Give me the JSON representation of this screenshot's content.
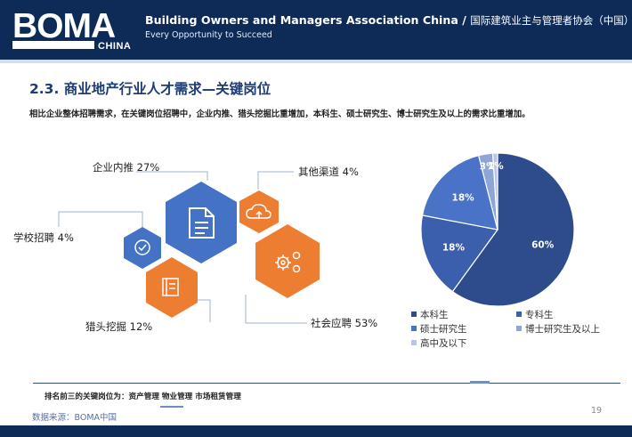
{
  "header": {
    "logo_text": "BOMA",
    "logo_sub": "CHINA",
    "title_en": "Building Owners and Managers Association China /",
    "title_cn": "国际建筑业主与管理者协会（中国）",
    "tagline": "Every Opportunity to Succeed"
  },
  "slide": {
    "title": "2.3. 商业地产行业人才需求—关键岗位",
    "subtitle": "相比企业整体招聘需求，在关键岗位招聘中，企业内推、猎头挖掘比重增加，本科生、硕士研究生、博士研究生及以上的需求比重增加。"
  },
  "channels": {
    "items": [
      {
        "label": "企业内推 27%",
        "icon": "document-icon",
        "color": "#4472c4"
      },
      {
        "label": "其他渠道 4%",
        "icon": "cloud-upload-icon",
        "color": "#ed7d31"
      },
      {
        "label": "学校招聘 4%",
        "icon": "check-circle-icon",
        "color": "#4472c4"
      },
      {
        "label": "社会应聘 53%",
        "icon": "gears-icon",
        "color": "#ed7d31"
      },
      {
        "label": "猎头挖掘 12%",
        "icon": "book-icon",
        "color": "#ed7d31"
      }
    ]
  },
  "chart_data": {
    "type": "pie",
    "title": "",
    "slices": [
      {
        "name": "本科生",
        "value": 60,
        "label": "60%",
        "color": "#2e4b8c"
      },
      {
        "name": "专科生",
        "value": 18,
        "label": "18%",
        "color": "#3c5fad"
      },
      {
        "name": "硕士研究生",
        "value": 18,
        "label": "18%",
        "color": "#4a72c7"
      },
      {
        "name": "博士研究生及以上",
        "value": 3,
        "label": "3%",
        "color": "#8ea6d6"
      },
      {
        "name": "高中及以下",
        "value": 1,
        "label": "1%",
        "color": "#b7c6e6"
      }
    ],
    "legend_position": "bottom"
  },
  "footer": {
    "note": "排名前三的关键岗位为：资产管理   物业管理   市场租赁管理",
    "source": "数据来源：BOMA中国",
    "page_number": "19"
  }
}
